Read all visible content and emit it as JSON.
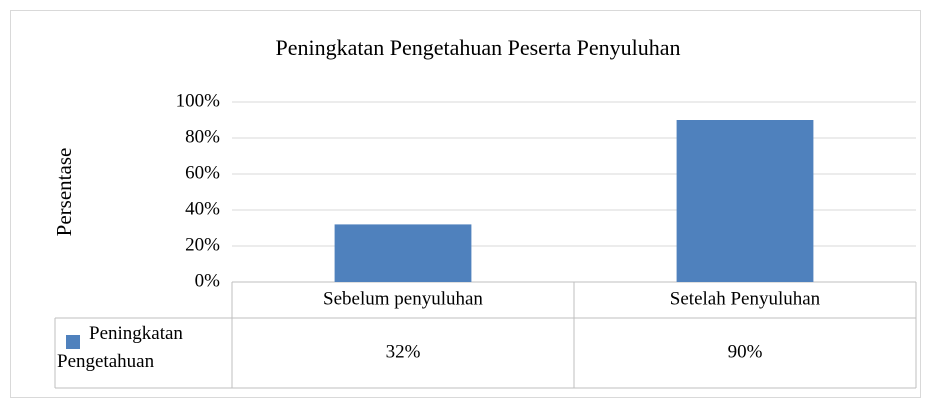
{
  "chart_data": {
    "type": "bar",
    "title": "Peningkatan Pengetahuan Peserta Penyuluhan",
    "y_label": "Persentase",
    "categories": [
      "Sebelum penyuluhan",
      "Setelah Penyuluhan"
    ],
    "series": [
      {
        "name": "Peningkatan Pengetahuan",
        "color": "#4f81bd",
        "values": [
          32,
          90
        ],
        "value_labels": [
          "32%",
          "90%"
        ]
      }
    ],
    "ylim": [
      0,
      100
    ],
    "yticks": [
      {
        "value": 0,
        "label": "0%"
      },
      {
        "value": 20,
        "label": "20%"
      },
      {
        "value": 40,
        "label": "40%"
      },
      {
        "value": 60,
        "label": "60%"
      },
      {
        "value": 80,
        "label": "80%"
      },
      {
        "value": 100,
        "label": "100%"
      }
    ],
    "grid": true,
    "data_table": true
  }
}
